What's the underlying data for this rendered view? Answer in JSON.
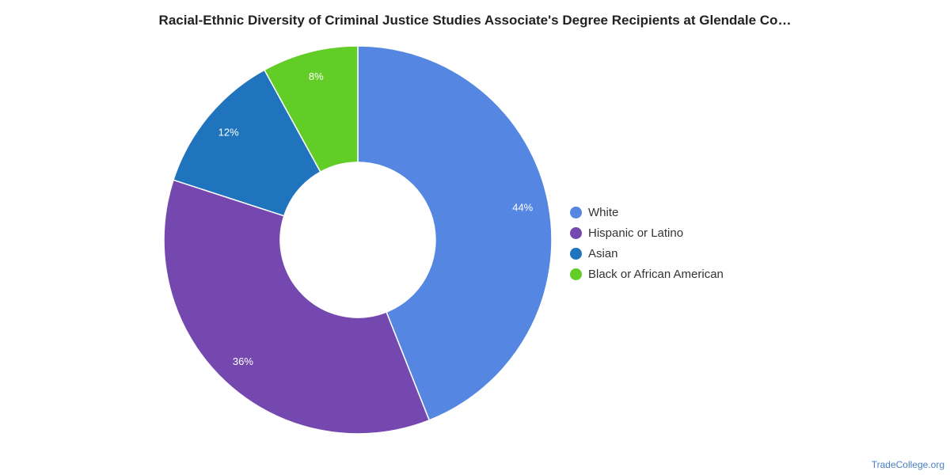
{
  "chart_data": {
    "type": "pie",
    "title": "Racial-Ethnic Diversity of Criminal Justice Studies Associate's Degree Recipients at Glendale Co…",
    "donut": true,
    "categories": [
      "White",
      "Hispanic or Latino",
      "Asian",
      "Black or African American"
    ],
    "values": [
      44,
      36,
      12,
      8
    ],
    "labels": [
      "44%",
      "36%",
      "12%",
      "8%"
    ],
    "colors": [
      "#5586e2",
      "#7548b0",
      "#1f74bd",
      "#62cd26"
    ],
    "legend_position": "right"
  },
  "footer": {
    "source": "TradeCollege.org"
  }
}
